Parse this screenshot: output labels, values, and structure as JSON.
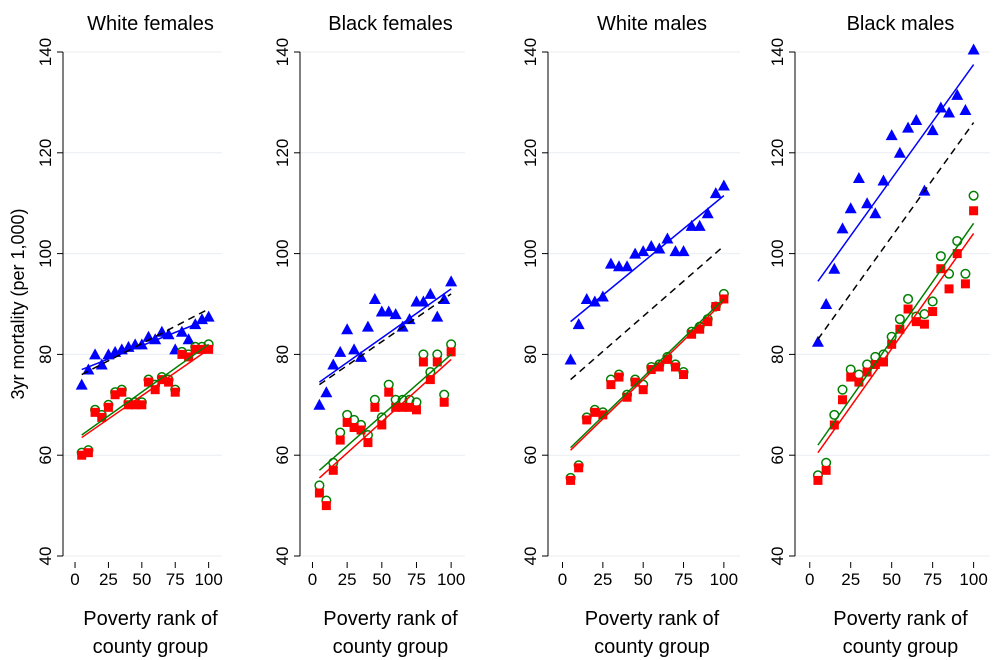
{
  "chart_data": [
    {
      "type": "scatter",
      "title": "White females",
      "ylabel": "3yr mortality (per 1,000)",
      "xlabel": [
        "Poverty rank of",
        "county group"
      ],
      "xlim": [
        -9,
        110
      ],
      "xticks": [
        0,
        25,
        50,
        75,
        100
      ],
      "ylim": [
        40,
        140
      ],
      "yticks": [
        40,
        60,
        80,
        100,
        120,
        140
      ],
      "grid": true,
      "x": [
        5,
        10,
        15,
        20,
        25,
        30,
        35,
        40,
        45,
        50,
        55,
        60,
        65,
        70,
        75,
        80,
        85,
        90,
        95,
        100
      ],
      "series": [
        {
          "color": "#0000ff",
          "marker": "triangle",
          "values": [
            74,
            77,
            80,
            78,
            80,
            80.5,
            81,
            81.5,
            82,
            82,
            83.5,
            83,
            84.5,
            84,
            81,
            84.5,
            83,
            86,
            87,
            87.5
          ]
        },
        {
          "color": "#007f00",
          "marker": "circle",
          "values": [
            60.5,
            61,
            69,
            68,
            70,
            72.5,
            73,
            70.5,
            70.5,
            70.5,
            75,
            74,
            75.5,
            75,
            73,
            80.5,
            80,
            81.5,
            81.5,
            82
          ]
        },
        {
          "color": "#ff0000",
          "marker": "square",
          "values": [
            60,
            60.5,
            68.5,
            67.5,
            69.5,
            72,
            72.5,
            70,
            70,
            70,
            74.5,
            73,
            75,
            74.5,
            72.5,
            80,
            79.5,
            81,
            81,
            81
          ]
        }
      ],
      "lines": [
        {
          "color": "#0000ff",
          "dashed": false,
          "x": [
            5,
            100
          ],
          "values": [
            77,
            87
          ]
        },
        {
          "color": "#000000",
          "dashed": true,
          "x": [
            5,
            100
          ],
          "values": [
            76,
            89
          ]
        },
        {
          "color": "#007f00",
          "dashed": false,
          "x": [
            5,
            100
          ],
          "values": [
            64,
            82
          ]
        },
        {
          "color": "#ff0000",
          "dashed": false,
          "x": [
            5,
            100
          ],
          "values": [
            63.5,
            81
          ]
        }
      ]
    },
    {
      "type": "scatter",
      "title": "Black females",
      "xlabel": [
        "Poverty rank of",
        "county group"
      ],
      "xlim": [
        -9,
        110
      ],
      "xticks": [
        0,
        25,
        50,
        75,
        100
      ],
      "ylim": [
        40,
        140
      ],
      "yticks": [
        40,
        60,
        80,
        100,
        120,
        140
      ],
      "grid": true,
      "x": [
        5,
        10,
        15,
        20,
        25,
        30,
        35,
        40,
        45,
        50,
        55,
        60,
        65,
        70,
        75,
        80,
        85,
        90,
        95,
        100
      ],
      "series": [
        {
          "color": "#0000ff",
          "marker": "triangle",
          "values": [
            70,
            72.5,
            78,
            80.5,
            85,
            81,
            79.5,
            85.5,
            91,
            88.5,
            88.5,
            88,
            85.5,
            87,
            90.5,
            90.5,
            92,
            87.5,
            91,
            94.5
          ]
        },
        {
          "color": "#007f00",
          "marker": "circle",
          "values": [
            54,
            51,
            58.5,
            64.5,
            68,
            67,
            66,
            64,
            71,
            67.5,
            74,
            71,
            71,
            71,
            70.5,
            80,
            76.5,
            80,
            72,
            82
          ]
        },
        {
          "color": "#ff0000",
          "marker": "square",
          "values": [
            52.5,
            50,
            57,
            63,
            66.5,
            65.5,
            65,
            62.5,
            69.5,
            66,
            72.5,
            69.5,
            69.5,
            69.5,
            69,
            78.5,
            75,
            78.5,
            70.5,
            80.5
          ]
        }
      ],
      "lines": [
        {
          "color": "#0000ff",
          "dashed": false,
          "x": [
            5,
            100
          ],
          "values": [
            74.5,
            93
          ]
        },
        {
          "color": "#000000",
          "dashed": true,
          "x": [
            5,
            100
          ],
          "values": [
            74,
            92
          ]
        },
        {
          "color": "#007f00",
          "dashed": false,
          "x": [
            5,
            100
          ],
          "values": [
            57,
            80
          ]
        },
        {
          "color": "#ff0000",
          "dashed": false,
          "x": [
            5,
            100
          ],
          "values": [
            55.5,
            79
          ]
        }
      ]
    },
    {
      "type": "scatter",
      "title": "White males",
      "xlabel": [
        "Poverty rank of",
        "county group"
      ],
      "xlim": [
        -9,
        110
      ],
      "xticks": [
        0,
        25,
        50,
        75,
        100
      ],
      "ylim": [
        40,
        140
      ],
      "yticks": [
        40,
        60,
        80,
        100,
        120,
        140
      ],
      "grid": true,
      "x": [
        5,
        10,
        15,
        20,
        25,
        30,
        35,
        40,
        45,
        50,
        55,
        60,
        65,
        70,
        75,
        80,
        85,
        90,
        95,
        100
      ],
      "series": [
        {
          "color": "#0000ff",
          "marker": "triangle",
          "values": [
            79,
            86,
            91,
            90.5,
            91.5,
            98,
            97.5,
            97.5,
            100,
            100.5,
            101.5,
            101,
            103,
            100.5,
            100.5,
            105.5,
            105.5,
            108,
            112,
            113.5
          ]
        },
        {
          "color": "#007f00",
          "marker": "circle",
          "values": [
            55.5,
            58,
            67.5,
            69,
            68.5,
            75,
            76,
            72,
            75,
            74,
            77.5,
            78,
            79.5,
            78,
            76.5,
            84.5,
            85.5,
            87,
            89.5,
            92
          ]
        },
        {
          "color": "#ff0000",
          "marker": "square",
          "values": [
            55,
            57.5,
            67,
            68.5,
            68,
            74,
            75.5,
            71.5,
            74.5,
            73,
            77,
            77.5,
            79,
            77.5,
            76,
            84,
            85,
            86.5,
            89.5,
            91
          ]
        }
      ],
      "lines": [
        {
          "color": "#0000ff",
          "dashed": false,
          "x": [
            5,
            100
          ],
          "values": [
            86.5,
            111.5
          ]
        },
        {
          "color": "#000000",
          "dashed": true,
          "x": [
            5,
            100
          ],
          "values": [
            75,
            101.5
          ]
        },
        {
          "color": "#007f00",
          "dashed": false,
          "x": [
            5,
            100
          ],
          "values": [
            61.5,
            91
          ]
        },
        {
          "color": "#ff0000",
          "dashed": false,
          "x": [
            5,
            100
          ],
          "values": [
            61,
            90.5
          ]
        }
      ]
    },
    {
      "type": "scatter",
      "title": "Black males",
      "xlabel": [
        "Poverty rank of",
        "county group"
      ],
      "xlim": [
        -9,
        110
      ],
      "xticks": [
        0,
        25,
        50,
        75,
        100
      ],
      "ylim": [
        40,
        140
      ],
      "yticks": [
        40,
        60,
        80,
        100,
        120,
        140
      ],
      "grid": true,
      "x": [
        5,
        10,
        15,
        20,
        25,
        30,
        35,
        40,
        45,
        50,
        55,
        60,
        65,
        70,
        75,
        80,
        85,
        90,
        95,
        100
      ],
      "series": [
        {
          "color": "#0000ff",
          "marker": "triangle",
          "values": [
            82.5,
            90,
            97,
            105,
            109,
            115,
            110,
            108,
            114.5,
            123.5,
            120,
            125,
            126.5,
            112.5,
            124.5,
            129,
            128,
            131.5,
            128.5,
            140.5
          ]
        },
        {
          "color": "#007f00",
          "marker": "circle",
          "values": [
            56,
            58.5,
            68,
            73,
            77,
            76,
            78,
            79.5,
            80,
            83.5,
            87,
            91,
            87.5,
            88,
            90.5,
            99.5,
            96,
            102.5,
            96,
            111.5
          ]
        },
        {
          "color": "#ff0000",
          "marker": "square",
          "values": [
            55,
            57,
            66,
            71,
            75.5,
            74.5,
            76.5,
            78,
            78.5,
            82,
            85,
            89,
            86.5,
            86,
            88.5,
            97,
            93,
            100,
            94,
            108.5
          ]
        }
      ],
      "lines": [
        {
          "color": "#0000ff",
          "dashed": false,
          "x": [
            5,
            100
          ],
          "values": [
            94.5,
            137.5
          ]
        },
        {
          "color": "#000000",
          "dashed": true,
          "x": [
            5,
            100
          ],
          "values": [
            83,
            126
          ]
        },
        {
          "color": "#007f00",
          "dashed": false,
          "x": [
            5,
            100
          ],
          "values": [
            62,
            106
          ]
        },
        {
          "color": "#ff0000",
          "dashed": false,
          "x": [
            5,
            100
          ],
          "values": [
            60.5,
            104
          ]
        }
      ]
    }
  ]
}
